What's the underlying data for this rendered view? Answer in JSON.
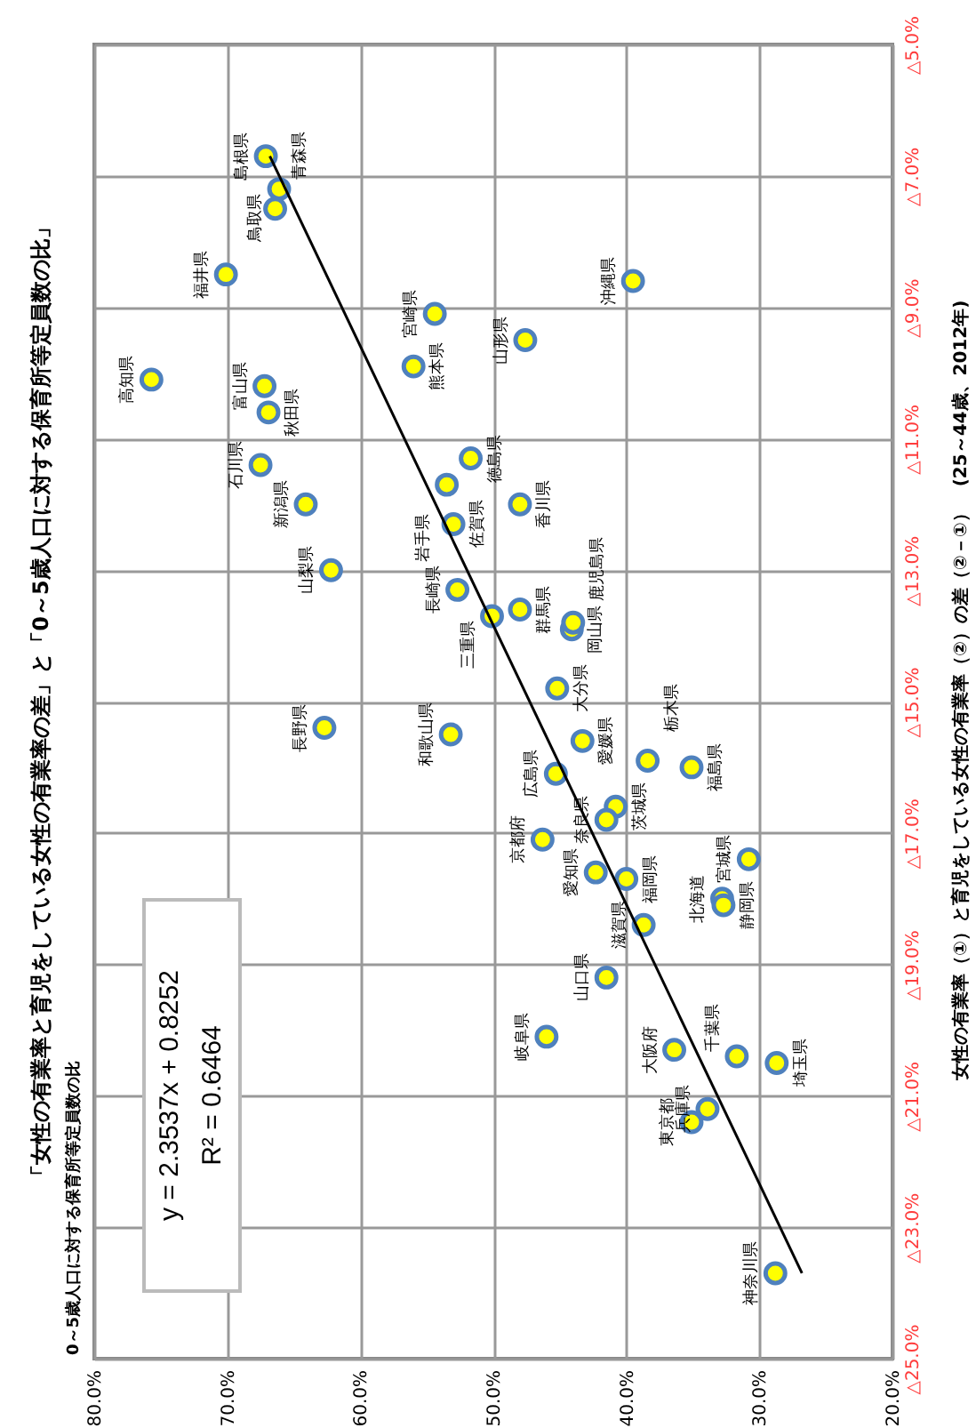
{
  "chart_data": {
    "type": "scatter",
    "title": "「女性の有業率と育児をしている女性の有業率の差」と「0～5歳人口に対する保育所等定員数の比」",
    "ylabel": "女性の有業率（①）と育児をしている女性の有業率（②）の差（②－①）　(25～44歳、2012年)",
    "xlim": [
      80,
      20
    ],
    "ylim": [
      -25,
      -5
    ],
    "xticks": [
      {
        "value": 80,
        "label": "80.0%"
      },
      {
        "value": 70,
        "label": "70.0%"
      },
      {
        "value": 60,
        "label": "60.0%"
      },
      {
        "value": 50,
        "label": "50.0%"
      },
      {
        "value": 40,
        "label": "40.0%"
      },
      {
        "value": 30,
        "label": "30.0%"
      },
      {
        "value": 20,
        "label": "20.0%"
      }
    ],
    "yticks": [
      {
        "value": -25,
        "label": "△25.0%"
      },
      {
        "value": -23,
        "label": "△23.0%"
      },
      {
        "value": -21,
        "label": "△21.0%"
      },
      {
        "value": -19,
        "label": "△19.0%"
      },
      {
        "value": -17,
        "label": "△17.0%"
      },
      {
        "value": -15,
        "label": "△15.0%"
      },
      {
        "value": -13,
        "label": "△13.0%"
      },
      {
        "value": -11,
        "label": "△11.0%"
      },
      {
        "value": -9,
        "label": "△9.0%"
      },
      {
        "value": -7,
        "label": "△7.0%"
      },
      {
        "value": -5,
        "label": "△5.0%"
      }
    ],
    "grid": true,
    "series": [
      {
        "type": "scatter",
        "marker": "circle",
        "color": "#ffff00",
        "x": [
          67.1,
          66.1,
          66.4,
          70.1,
          54.4,
          75.7,
          56.0,
          67.2,
          66.9,
          51.7,
          67.5,
          53.5,
          64.1,
          53.0,
          62.2,
          52.7,
          39.5,
          47.6,
          48.0,
          50.1,
          62.7,
          53.2,
          48.0,
          44.1,
          44.0,
          45.2,
          45.3,
          43.3,
          40.8,
          38.4,
          35.1,
          46.3,
          41.5,
          42.3,
          40.0,
          30.8,
          38.7,
          32.8,
          32.7,
          41.5,
          46.0,
          36.4,
          31.7,
          28.7,
          35.1,
          33.9,
          28.8
        ],
        "values": [
          -6.7,
          -7.2,
          -7.5,
          -8.5,
          -9.1,
          -10.1,
          -9.9,
          -10.2,
          -10.6,
          -11.3,
          -11.4,
          -11.7,
          -12.0,
          -12.3,
          -13.0,
          -13.3,
          -8.6,
          -9.5,
          -12.0,
          -13.7,
          -15.4,
          -15.5,
          -13.6,
          -13.9,
          -13.8,
          -14.8,
          -16.1,
          -15.6,
          -16.6,
          -15.9,
          -16.0,
          -17.1,
          -16.8,
          -17.6,
          -17.7,
          -17.4,
          -18.4,
          -18.0,
          -18.1,
          -19.2,
          -20.1,
          -20.3,
          -20.4,
          -20.5,
          -21.4,
          -21.2,
          -23.7
        ]
      },
      {
        "type": "line",
        "color": "#000000",
        "x": [
          66.8,
          26.8
        ],
        "values": [
          -6.7,
          -23.7
        ]
      }
    ],
    "annotations": [
      "0～5歳人口に対する保育所等定員数の比",
      "y = 2.3537x + 0.8252",
      "R² = 0.6464",
      {
        "text": "島根県",
        "x": 67.1,
        "y": -6.7
      },
      {
        "text": "鳥取県",
        "x": 66.1,
        "y": -7.2
      },
      {
        "text": "青森県",
        "x": 66.4,
        "y": -7.5
      },
      {
        "text": "福井県",
        "x": 70.1,
        "y": -8.5
      },
      {
        "text": "宮崎県",
        "x": 54.4,
        "y": -9.1
      },
      {
        "text": "高知県",
        "x": 75.7,
        "y": -10.1
      },
      {
        "text": "熊本県",
        "x": 56.0,
        "y": -9.9
      },
      {
        "text": "富山県",
        "x": 67.2,
        "y": -10.2
      },
      {
        "text": "秋田県",
        "x": 66.9,
        "y": -10.6
      },
      {
        "text": "徳島県",
        "x": 51.7,
        "y": -11.3
      },
      {
        "text": "石川県",
        "x": 67.5,
        "y": -11.4
      },
      {
        "text": "岩手県",
        "x": 53.5,
        "y": -11.7
      },
      {
        "text": "新潟県",
        "x": 64.1,
        "y": -12.0
      },
      {
        "text": "佐賀県",
        "x": 53.0,
        "y": -12.3
      },
      {
        "text": "山梨県",
        "x": 62.2,
        "y": -13.0
      },
      {
        "text": "長崎県",
        "x": 52.7,
        "y": -13.3
      },
      {
        "text": "沖縄県",
        "x": 39.5,
        "y": -8.6
      },
      {
        "text": "山形県",
        "x": 47.6,
        "y": -9.5
      },
      {
        "text": "香川県",
        "x": 48.0,
        "y": -12.0
      },
      {
        "text": "三重県",
        "x": 50.1,
        "y": -13.7
      },
      {
        "text": "長野県",
        "x": 62.7,
        "y": -15.4
      },
      {
        "text": "和歌山県",
        "x": 53.2,
        "y": -15.5
      },
      {
        "text": "群馬県",
        "x": 48.0,
        "y": -13.6
      },
      {
        "text": "岡山県",
        "x": 44.1,
        "y": -13.9
      },
      {
        "text": "鹿児島県",
        "x": 44.0,
        "y": -13.8
      },
      {
        "text": "大分県",
        "x": 45.2,
        "y": -14.8
      },
      {
        "text": "広島県",
        "x": 45.3,
        "y": -16.1
      },
      {
        "text": "愛媛県",
        "x": 43.3,
        "y": -15.6
      },
      {
        "text": "茨城県",
        "x": 40.8,
        "y": -16.6
      },
      {
        "text": "栃木県",
        "x": 38.4,
        "y": -15.9
      },
      {
        "text": "福島県",
        "x": 35.1,
        "y": -16.0
      },
      {
        "text": "京都府",
        "x": 46.3,
        "y": -17.1
      },
      {
        "text": "奈良県",
        "x": 41.5,
        "y": -16.8
      },
      {
        "text": "愛知県",
        "x": 42.3,
        "y": -17.6
      },
      {
        "text": "福岡県",
        "x": 40.0,
        "y": -17.7
      },
      {
        "text": "宮城県",
        "x": 30.8,
        "y": -17.4
      },
      {
        "text": "滋賀県",
        "x": 38.7,
        "y": -18.4
      },
      {
        "text": "北海道",
        "x": 32.8,
        "y": -18.0
      },
      {
        "text": "静岡県",
        "x": 32.7,
        "y": -18.1
      },
      {
        "text": "山口県",
        "x": 41.5,
        "y": -19.2
      },
      {
        "text": "岐阜県",
        "x": 46.0,
        "y": -20.1
      },
      {
        "text": "大阪府",
        "x": 36.4,
        "y": -20.3
      },
      {
        "text": "千葉県",
        "x": 31.7,
        "y": -20.4
      },
      {
        "text": "埼玉県",
        "x": 28.7,
        "y": -20.5
      },
      {
        "text": "東京都",
        "x": 35.1,
        "y": -21.4
      },
      {
        "text": "兵庫県",
        "x": 33.9,
        "y": -21.2
      },
      {
        "text": "神奈川県",
        "x": 28.8,
        "y": -23.7
      }
    ]
  }
}
